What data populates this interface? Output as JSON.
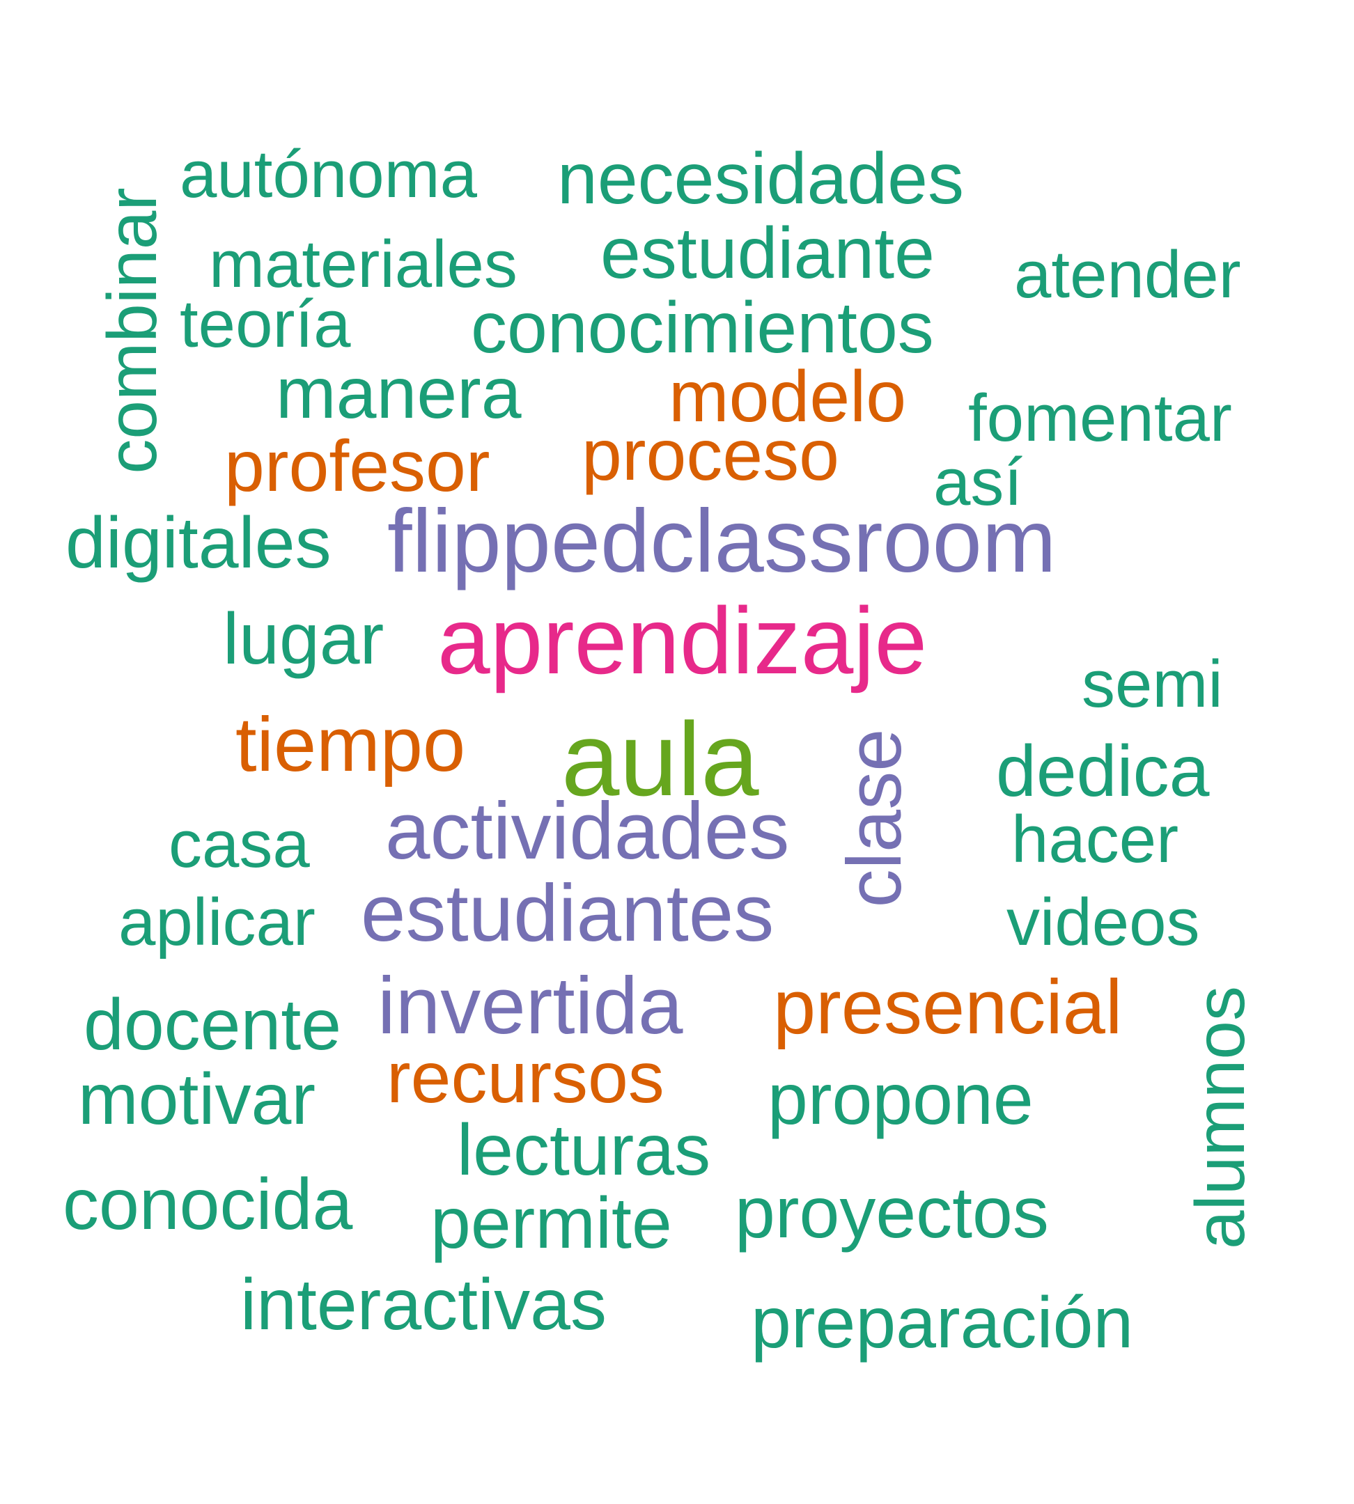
{
  "colors": {
    "green_teal": "#1B9E77",
    "orange": "#D95F02",
    "purple": "#7570B3",
    "magenta": "#E7298A",
    "olive_green": "#66A61E",
    "background": "#FFFFFF"
  },
  "words": [
    {
      "text": "aula",
      "color": "olive_green",
      "rank": 1
    },
    {
      "text": "aprendizaje",
      "color": "magenta",
      "rank": 2
    },
    {
      "text": "flippedclassroom",
      "color": "purple",
      "rank": 3
    },
    {
      "text": "actividades",
      "color": "purple",
      "rank": 3
    },
    {
      "text": "estudiantes",
      "color": "purple",
      "rank": 3
    },
    {
      "text": "invertida",
      "color": "purple",
      "rank": 3
    },
    {
      "text": "clase",
      "color": "purple",
      "rank": 3
    },
    {
      "text": "tiempo",
      "color": "orange",
      "rank": 4
    },
    {
      "text": "profesor",
      "color": "orange",
      "rank": 4
    },
    {
      "text": "proceso",
      "color": "orange",
      "rank": 4
    },
    {
      "text": "modelo",
      "color": "orange",
      "rank": 4
    },
    {
      "text": "presencial",
      "color": "orange",
      "rank": 4
    },
    {
      "text": "recursos",
      "color": "orange",
      "rank": 4
    },
    {
      "text": "autónoma",
      "color": "green_teal",
      "rank": 5
    },
    {
      "text": "necesidades",
      "color": "green_teal",
      "rank": 5
    },
    {
      "text": "materiales",
      "color": "green_teal",
      "rank": 5
    },
    {
      "text": "estudiante",
      "color": "green_teal",
      "rank": 5
    },
    {
      "text": "atender",
      "color": "green_teal",
      "rank": 5
    },
    {
      "text": "teoría",
      "color": "green_teal",
      "rank": 5
    },
    {
      "text": "conocimientos",
      "color": "green_teal",
      "rank": 5
    },
    {
      "text": "manera",
      "color": "green_teal",
      "rank": 5
    },
    {
      "text": "fomentar",
      "color": "green_teal",
      "rank": 5
    },
    {
      "text": "así",
      "color": "green_teal",
      "rank": 5
    },
    {
      "text": "combinar",
      "color": "green_teal",
      "rank": 5
    },
    {
      "text": "digitales",
      "color": "green_teal",
      "rank": 5
    },
    {
      "text": "lugar",
      "color": "green_teal",
      "rank": 5
    },
    {
      "text": "semi",
      "color": "green_teal",
      "rank": 5
    },
    {
      "text": "dedica",
      "color": "green_teal",
      "rank": 5
    },
    {
      "text": "hacer",
      "color": "green_teal",
      "rank": 5
    },
    {
      "text": "casa",
      "color": "green_teal",
      "rank": 5
    },
    {
      "text": "aplicar",
      "color": "green_teal",
      "rank": 5
    },
    {
      "text": "videos",
      "color": "green_teal",
      "rank": 5
    },
    {
      "text": "docente",
      "color": "green_teal",
      "rank": 5
    },
    {
      "text": "alumnos",
      "color": "green_teal",
      "rank": 5
    },
    {
      "text": "motivar",
      "color": "green_teal",
      "rank": 5
    },
    {
      "text": "propone",
      "color": "green_teal",
      "rank": 5
    },
    {
      "text": "lecturas",
      "color": "green_teal",
      "rank": 5
    },
    {
      "text": "conocida",
      "color": "green_teal",
      "rank": 5
    },
    {
      "text": "permite",
      "color": "green_teal",
      "rank": 5
    },
    {
      "text": "proyectos",
      "color": "green_teal",
      "rank": 5
    },
    {
      "text": "interactivas",
      "color": "green_teal",
      "rank": 5
    },
    {
      "text": "preparación",
      "color": "green_teal",
      "rank": 5
    }
  ]
}
